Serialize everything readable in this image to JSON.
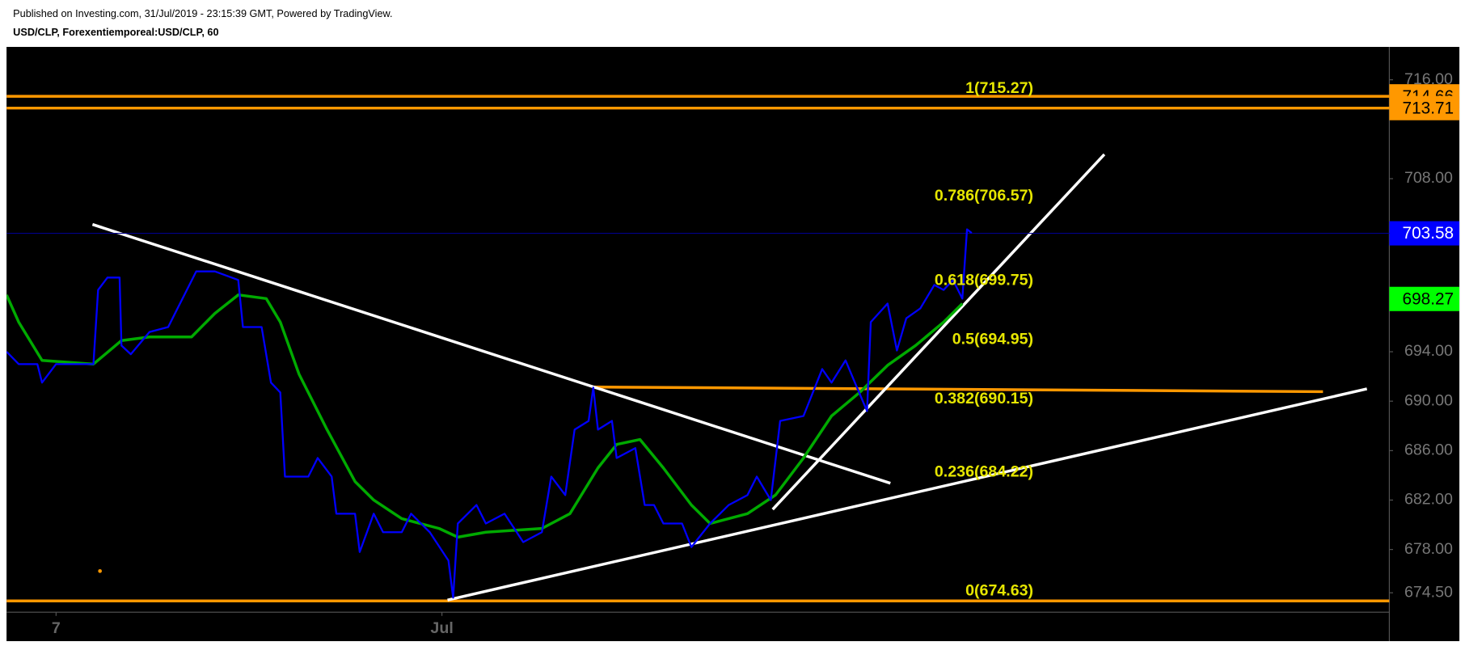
{
  "chart_data": {
    "type": "line",
    "title": "Published on Investing.com, 31/Jul/2019 - 23:15:39 GMT, Powered by TradingView.",
    "subtitle": "USD/CLP, Forexentiemporeal:USD/CLP, 60",
    "xlim": [
      0,
      148
    ],
    "xticks": [
      {
        "value": 5.3,
        "label": "7"
      },
      {
        "value": 46.6,
        "label": "Jul"
      }
    ],
    "ylim": [
      672.93,
      718.66
    ],
    "yticks": [
      {
        "value": 674.5,
        "label": "674.50"
      },
      {
        "value": 678,
        "label": "678.00"
      },
      {
        "value": 682,
        "label": "682.00"
      },
      {
        "value": 686,
        "label": "686.00"
      },
      {
        "value": 690,
        "label": "690.00"
      },
      {
        "value": 694,
        "label": "694.00"
      },
      {
        "value": 708,
        "label": "708.00"
      },
      {
        "value": 716,
        "label": "716.00"
      }
    ],
    "series": [
      {
        "color": "#0000ff",
        "x": [
          0,
          1.3,
          3.3,
          3.8,
          5.3,
          9.3,
          9.8,
          10.8,
          12.1,
          12.3,
          13.3,
          15.3,
          17.3,
          18.3,
          20.3,
          22.3,
          24.8,
          25.3,
          27.3,
          28.3,
          29.3,
          29.8,
          32.3,
          33.3,
          34.8,
          35.3,
          37.3,
          37.8,
          39.3,
          40.3,
          42.3,
          43.3,
          45.3,
          47.3,
          47.8,
          48.3,
          50.3,
          51.3,
          53.3,
          55.3,
          57.3,
          58.3,
          59.8,
          60.8,
          62.3,
          62.8,
          63.3,
          64.8,
          65.3,
          67.3,
          68.3,
          69.3,
          70.3,
          72.3,
          73.3,
          75.3,
          77.3,
          79.3,
          80.3,
          81.8,
          82.8,
          85.3,
          87.3,
          88.3,
          89.8,
          90.8,
          92.1,
          92.5,
          94.3,
          95.3,
          96.3,
          97.8,
          99.3,
          100.3,
          101.3,
          102.3,
          102.8,
          103.3
        ],
        "values": [
          694.0,
          693.0,
          693.0,
          691.5,
          693.0,
          693.0,
          699.0,
          700.0,
          700.0,
          694.5,
          693.8,
          695.6,
          696.0,
          697.5,
          700.5,
          700.5,
          699.8,
          696.0,
          696.0,
          691.5,
          690.7,
          683.9,
          683.9,
          685.4,
          683.9,
          680.9,
          680.9,
          677.8,
          680.9,
          679.4,
          679.4,
          680.9,
          679.4,
          677.1,
          674.1,
          680.1,
          681.6,
          680.1,
          680.9,
          678.6,
          679.4,
          683.9,
          682.4,
          687.7,
          688.4,
          691.1,
          687.7,
          688.4,
          685.4,
          686.2,
          681.6,
          681.6,
          680.1,
          680.1,
          678.2,
          680.1,
          681.6,
          682.4,
          683.9,
          682.0,
          688.4,
          688.8,
          692.6,
          691.5,
          693.3,
          691.5,
          689.2,
          696.4,
          697.9,
          694.1,
          696.7,
          697.5,
          699.4,
          699.0,
          699.8,
          698.3,
          703.9,
          703.6
        ]
      },
      {
        "color": "#00aa00",
        "x": [
          0,
          1.3,
          3.8,
          9.3,
          12.3,
          15.3,
          19.8,
          22.3,
          24.8,
          27.8,
          29.3,
          31.3,
          34.3,
          37.3,
          39.3,
          42.3,
          46.3,
          48.3,
          51.3,
          57.3,
          60.3,
          63.3,
          65.3,
          67.8,
          70.3,
          73.3,
          75.3,
          79.3,
          82.3,
          85.3,
          88.3,
          91.3,
          94.3,
          97.3,
          100.3,
          102.3
        ],
        "values": [
          698.6,
          696.4,
          693.3,
          693.0,
          694.9,
          695.2,
          695.2,
          697.1,
          698.6,
          698.3,
          696.4,
          692.2,
          687.7,
          683.5,
          682.0,
          680.5,
          679.7,
          679.0,
          679.4,
          679.7,
          680.9,
          684.6,
          686.5,
          686.9,
          684.6,
          681.6,
          680.1,
          680.9,
          682.4,
          685.4,
          688.8,
          690.7,
          692.9,
          694.5,
          696.4,
          697.9
        ]
      }
    ],
    "fib_color": "#e6e600",
    "fib_levels": [
      {
        "value": 715.27,
        "label": "1(715.27)"
      },
      {
        "value": 706.57,
        "label": "0.786(706.57)"
      },
      {
        "value": 699.75,
        "label": "0.618(699.75)"
      },
      {
        "value": 694.95,
        "label": "0.5(694.95)"
      },
      {
        "value": 690.15,
        "label": "0.382(690.15)"
      },
      {
        "value": 684.22,
        "label": "0.236(684.22)"
      },
      {
        "value": 674.63,
        "label": "0(674.63)"
      }
    ],
    "price_labels": [
      {
        "value": 714.66,
        "color": "#ff9800",
        "text_color": "#000000",
        "line": true
      },
      {
        "value": 713.71,
        "color": "#ff9800",
        "text_color": "#000000",
        "line": true
      },
      {
        "value": 703.58,
        "color": "#0000ff",
        "text_color": "#ffffff",
        "line": true
      },
      {
        "value": 698.27,
        "color": "#00ff00",
        "text_color": "#000000",
        "line": false
      }
    ]
  }
}
